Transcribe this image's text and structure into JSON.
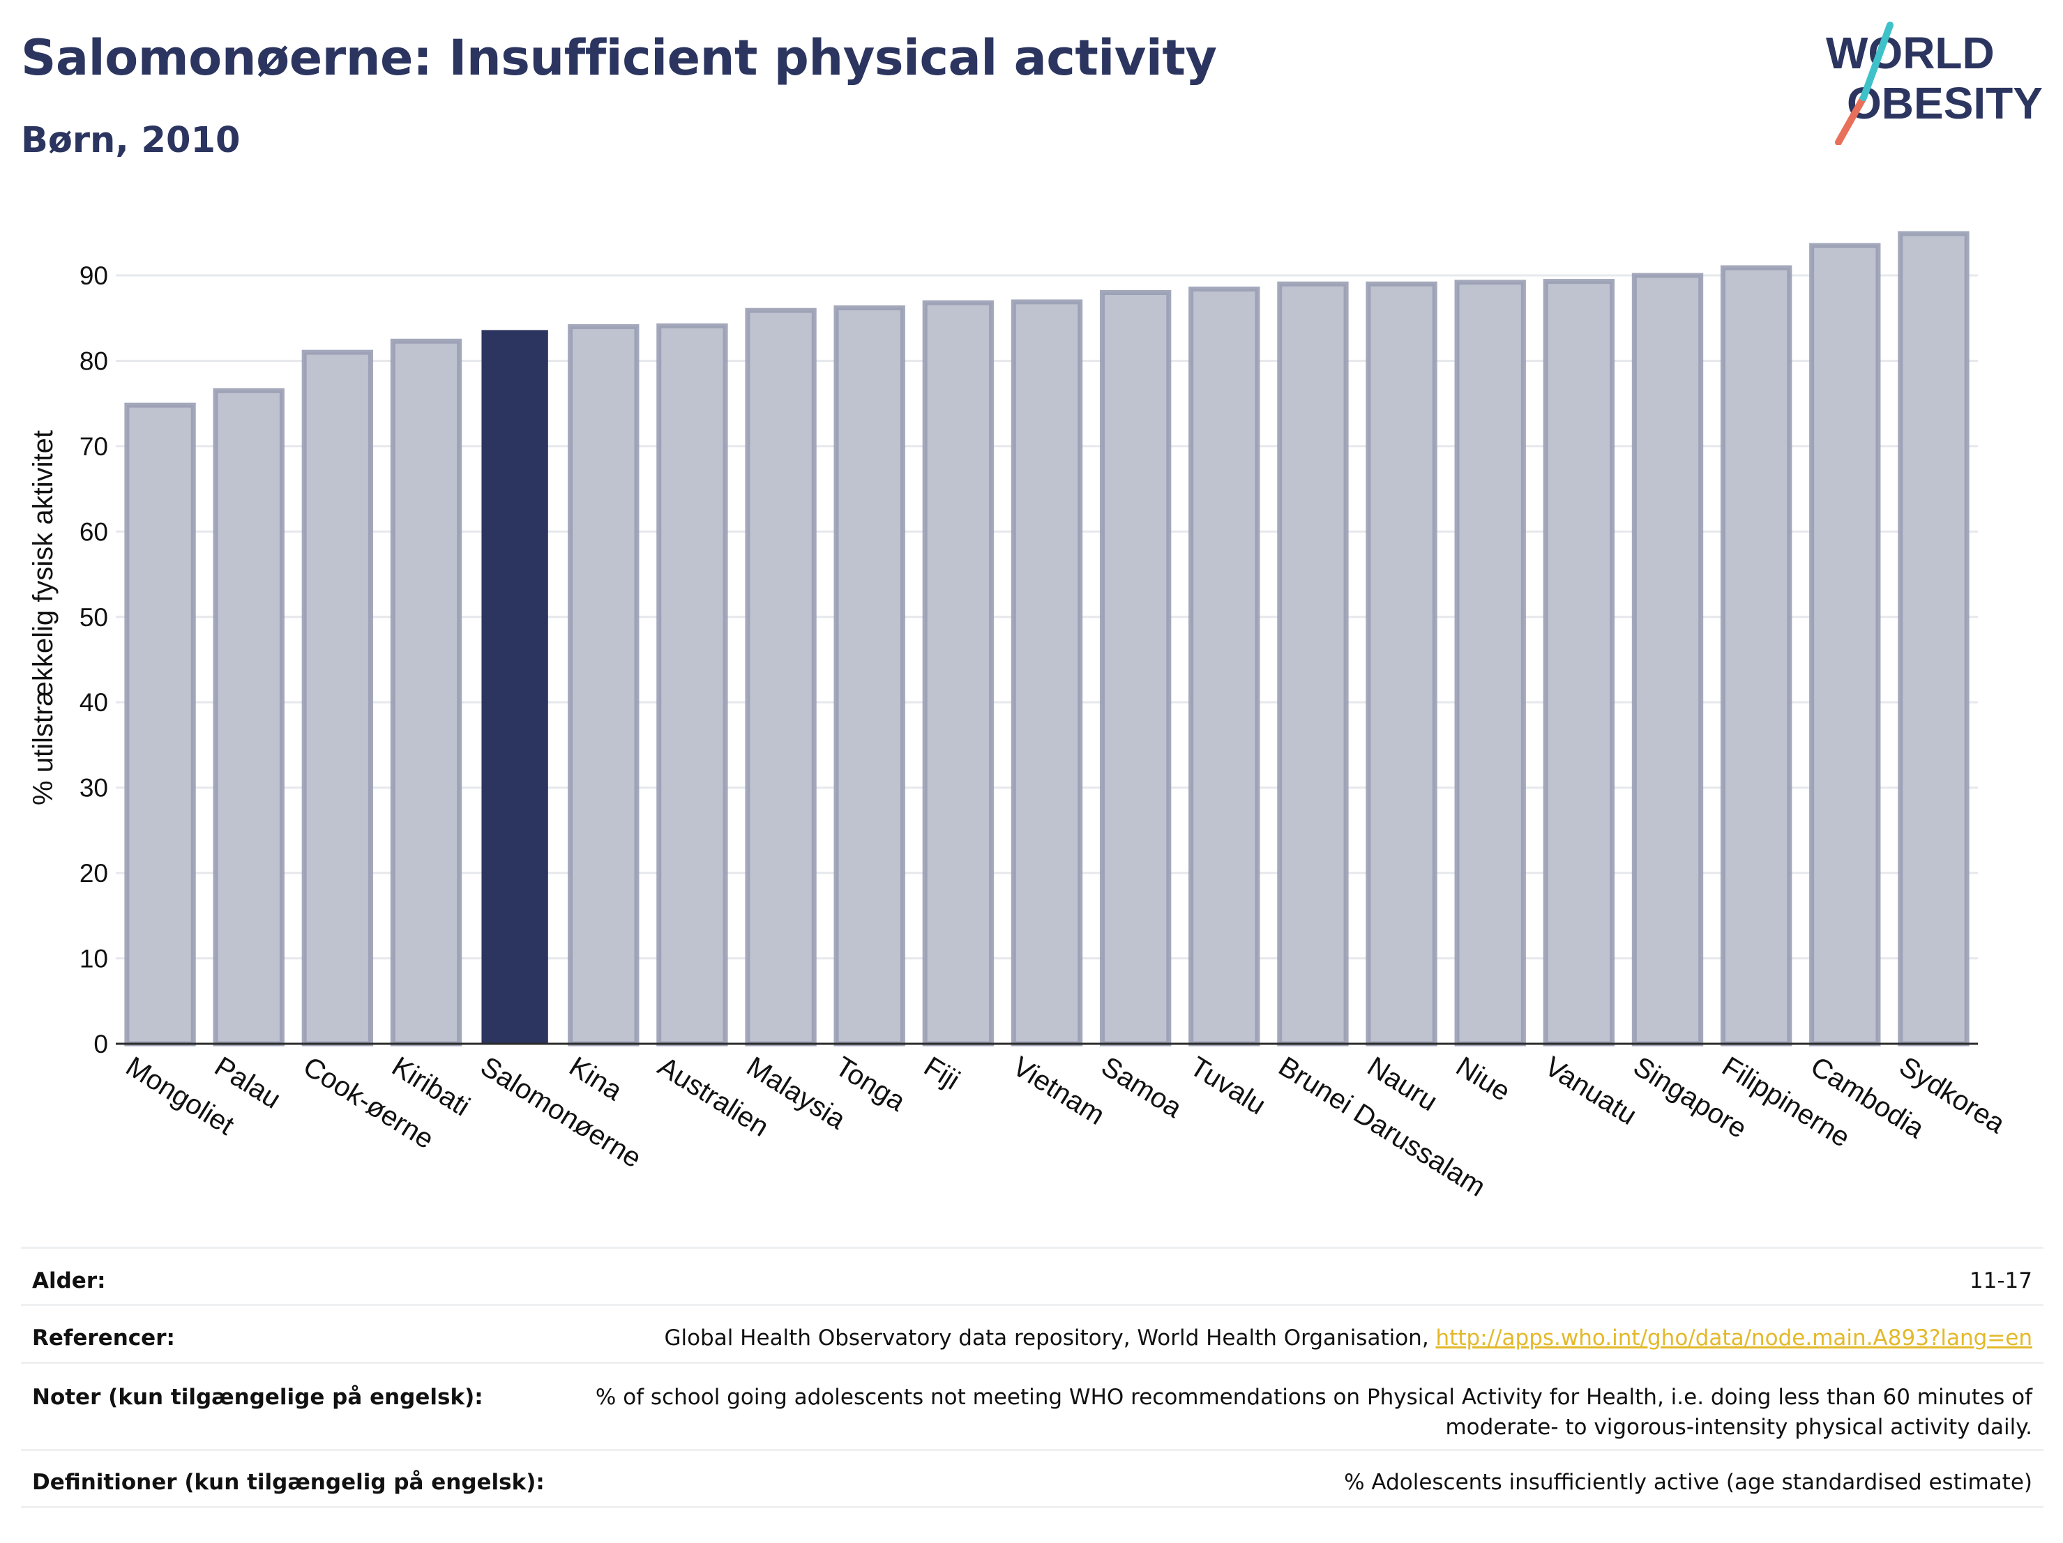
{
  "header": {
    "title": "Salomonøerne: Insufficient physical activity",
    "subtitle": "Børn, 2010"
  },
  "logo": {
    "line1": "WORLD",
    "line2": "OBESITY",
    "color": "#2b355f",
    "accent_teal": "#3fc1c9",
    "accent_red": "#e8705a"
  },
  "chart_data": {
    "type": "bar",
    "categories": [
      "Mongoliet",
      "Palau",
      "Cook-øerne",
      "Kiribati",
      "Salomonøerne",
      "Kina",
      "Australien",
      "Malaysia",
      "Tonga",
      "Fiji",
      "Vietnam",
      "Samoa",
      "Tuvalu",
      "Brunei Darussalam",
      "Nauru",
      "Niue",
      "Vanuatu",
      "Singapore",
      "Filippinerne",
      "Cambodia",
      "Sydkorea"
    ],
    "values": [
      74.8,
      76.5,
      81.0,
      82.3,
      83.6,
      84.0,
      84.1,
      85.9,
      86.2,
      86.8,
      86.9,
      88.0,
      88.4,
      89.0,
      89.0,
      89.2,
      89.3,
      90.0,
      90.9,
      93.5,
      94.9
    ],
    "highlight": "Salomonøerne",
    "ylabel": "% utilstrækkelig fysisk aktivitet",
    "xlabel": "",
    "ylim": [
      0,
      98
    ],
    "yticks": [
      0,
      10,
      20,
      30,
      40,
      50,
      60,
      70,
      80,
      90
    ],
    "grid": true,
    "colors": {
      "highlight": "#2b355f",
      "bar": "#bfc2cf",
      "bar_edge": "#9a9fb4"
    }
  },
  "meta": {
    "age_label": "Alder:",
    "age_value": "11-17",
    "refs_label": "Referencer:",
    "refs_text": "Global Health Observatory data repository, World Health Organisation,",
    "refs_link": "http://apps.who.int/gho/data/node.main.A893?lang=en",
    "notes_label": "Noter (kun tilgængelige på engelsk):",
    "notes_value": "% of school going adolescents not meeting WHO recommendations on Physical Activity for Health, i.e. doing less than 60 minutes of moderate- to vigorous-intensity physical activity daily.",
    "defs_label": "Definitioner (kun tilgængelig på engelsk):",
    "defs_value": "% Adolescents insufficiently active (age standardised estimate)"
  }
}
